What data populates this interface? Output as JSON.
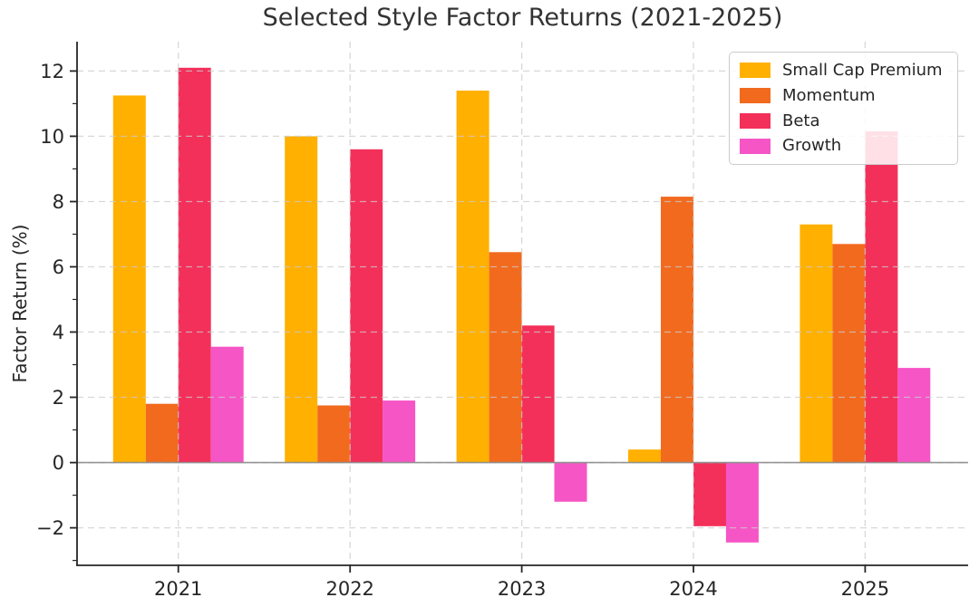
{
  "figure": {
    "background": "#ffffff"
  },
  "chart_data": {
    "type": "bar",
    "title": "Selected Style Factor Returns (2021-2025)",
    "xlabel": "",
    "ylabel": "Factor Return (%)",
    "categories": [
      "2021",
      "2022",
      "2023",
      "2024",
      "2025"
    ],
    "series": [
      {
        "name": "Small Cap Premium",
        "color": "#FFB000",
        "values": [
          11.25,
          10.0,
          11.4,
          0.4,
          7.3
        ]
      },
      {
        "name": "Momentum",
        "color": "#F26A1E",
        "values": [
          1.8,
          1.75,
          6.45,
          8.15,
          6.7
        ]
      },
      {
        "name": "Beta",
        "color": "#F3305A",
        "values": [
          12.1,
          9.6,
          4.2,
          -1.95,
          10.15
        ]
      },
      {
        "name": "Growth",
        "color": "#F655C6",
        "values": [
          3.55,
          1.9,
          -1.2,
          -2.45,
          2.9
        ]
      }
    ],
    "yticks": [
      -2,
      0,
      2,
      4,
      6,
      8,
      10,
      12
    ],
    "ytick_labels": [
      "−2",
      "0",
      "2",
      "4",
      "6",
      "8",
      "10",
      "12"
    ],
    "yticks_minor": [
      -3,
      -1,
      1,
      3,
      5,
      7,
      9,
      11
    ],
    "ylim": [
      -3.15,
      12.9
    ],
    "xlim": [
      -0.59,
      4.6
    ],
    "bar_width": 0.19,
    "grid": true,
    "grid_style": "dashed",
    "zero_line": true,
    "legend_position": "upper right"
  },
  "colors": {
    "grid": "#cbcbcb",
    "spine": "#262626",
    "tick_text": "#262626",
    "title_text": "#333333",
    "zero_line": "#8a8a8a",
    "legend_border": "#cccccc",
    "legend_bg": "rgba(255,255,255,0.85)"
  }
}
